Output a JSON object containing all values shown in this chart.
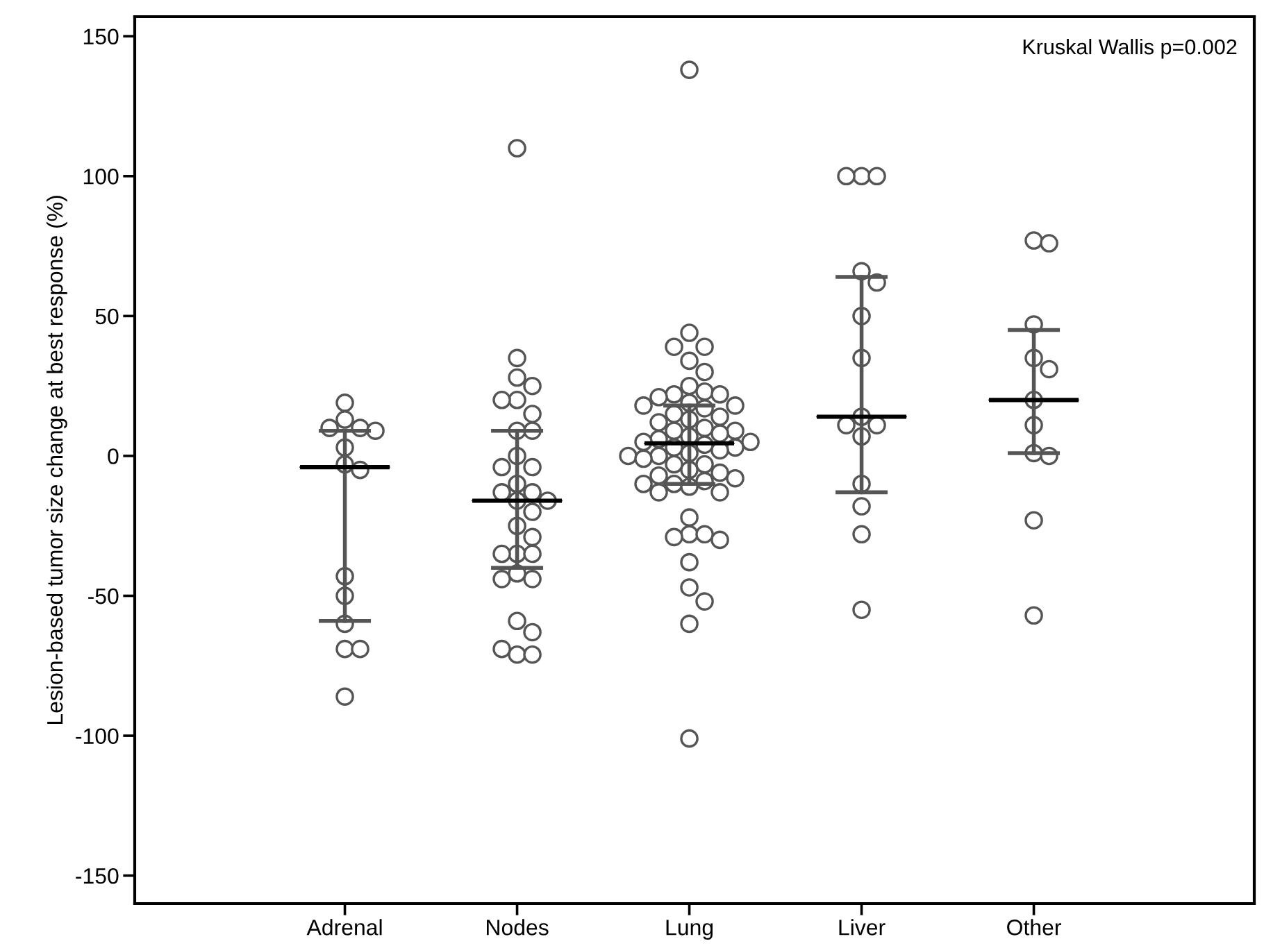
{
  "chart_data": {
    "type": "scatter",
    "ylabel": "Lesion-based tumor size change at best response (%)",
    "categories": [
      "Adrenal",
      "Nodes",
      "Lung",
      "Liver",
      "Other"
    ],
    "ylim": [
      -160,
      157
    ],
    "yticks": [
      -150,
      -100,
      -50,
      0,
      50,
      100,
      150
    ],
    "grid": false,
    "legend": false,
    "annotations": [
      "Kruskal Wallis p=0.002"
    ],
    "series": [
      {
        "marker": "circle",
        "color": "#555555",
        "x": [
          "Adrenal",
          "Adrenal",
          "Adrenal",
          "Adrenal",
          "Adrenal",
          "Adrenal",
          "Adrenal",
          "Adrenal",
          "Adrenal",
          "Adrenal",
          "Adrenal",
          "Adrenal",
          "Adrenal",
          "Adrenal",
          "Nodes",
          "Nodes",
          "Nodes",
          "Nodes",
          "Nodes",
          "Nodes",
          "Nodes",
          "Nodes",
          "Nodes",
          "Nodes",
          "Nodes",
          "Nodes",
          "Nodes",
          "Nodes",
          "Nodes",
          "Nodes",
          "Nodes",
          "Nodes",
          "Nodes",
          "Nodes",
          "Nodes",
          "Nodes",
          "Nodes",
          "Nodes",
          "Nodes",
          "Nodes",
          "Nodes",
          "Nodes",
          "Nodes",
          "Nodes",
          "Nodes",
          "Lung",
          "Lung",
          "Lung",
          "Lung",
          "Lung",
          "Lung",
          "Lung",
          "Lung",
          "Lung",
          "Lung",
          "Lung",
          "Lung",
          "Lung",
          "Lung",
          "Lung",
          "Lung",
          "Lung",
          "Lung",
          "Lung",
          "Lung",
          "Lung",
          "Lung",
          "Lung",
          "Lung",
          "Lung",
          "Lung",
          "Lung",
          "Lung",
          "Lung",
          "Lung",
          "Lung",
          "Lung",
          "Lung",
          "Lung",
          "Lung",
          "Lung",
          "Lung",
          "Lung",
          "Lung",
          "Lung",
          "Lung",
          "Lung",
          "Lung",
          "Lung",
          "Lung",
          "Lung",
          "Lung",
          "Lung",
          "Lung",
          "Lung",
          "Lung",
          "Lung",
          "Lung",
          "Lung",
          "Lung",
          "Lung",
          "Lung",
          "Liver",
          "Liver",
          "Liver",
          "Liver",
          "Liver",
          "Liver",
          "Liver",
          "Liver",
          "Liver",
          "Liver",
          "Liver",
          "Liver",
          "Liver",
          "Liver",
          "Liver",
          "Other",
          "Other",
          "Other",
          "Other",
          "Other",
          "Other",
          "Other",
          "Other",
          "Other",
          "Other",
          "Other"
        ],
        "values": [
          19,
          13,
          10,
          10,
          9,
          3,
          -3,
          -5,
          -43,
          -50,
          -60,
          -69,
          -69,
          -86,
          110,
          35,
          28,
          25,
          20,
          20,
          15,
          9,
          9,
          0,
          -4,
          -4,
          -10,
          -13,
          -13,
          -16,
          -16,
          -20,
          -25,
          -29,
          -35,
          -35,
          -35,
          -42,
          -44,
          -44,
          -59,
          -63,
          -71,
          -71,
          -69,
          138,
          44,
          39,
          39,
          34,
          30,
          25,
          23,
          22,
          22,
          21,
          19,
          18,
          18,
          17,
          15,
          14,
          13,
          12,
          10,
          9,
          9,
          8,
          7,
          6,
          5,
          5,
          4,
          3,
          3,
          2,
          1,
          0,
          0,
          -1,
          -3,
          -3,
          -5,
          -6,
          -7,
          -8,
          -9,
          -10,
          -10,
          -11,
          -13,
          -13,
          -22,
          -28,
          -28,
          -29,
          -30,
          -38,
          -47,
          -52,
          -60,
          -101,
          100,
          100,
          100,
          66,
          62,
          50,
          35,
          14,
          11,
          11,
          7,
          -10,
          -18,
          -28,
          -55,
          77,
          76,
          47,
          35,
          31,
          20,
          11,
          1,
          0,
          -23,
          -57
        ]
      },
      {
        "type": "box",
        "color": "#000000",
        "boxes": [
          {
            "low": -59,
            "q1": -4,
            "median": -4,
            "q3": -4,
            "high": 9
          },
          {
            "low": -40,
            "q1": -16,
            "median": -16,
            "q3": -16,
            "high": 9
          },
          {
            "low": -10,
            "q1": 4.5,
            "median": 4.5,
            "q3": 4.5,
            "high": 18
          },
          {
            "low": -13,
            "q1": 14,
            "median": 14,
            "q3": 14,
            "high": 64
          },
          {
            "low": 1,
            "q1": 20,
            "median": 20,
            "q3": 20,
            "high": 45
          }
        ]
      }
    ]
  }
}
